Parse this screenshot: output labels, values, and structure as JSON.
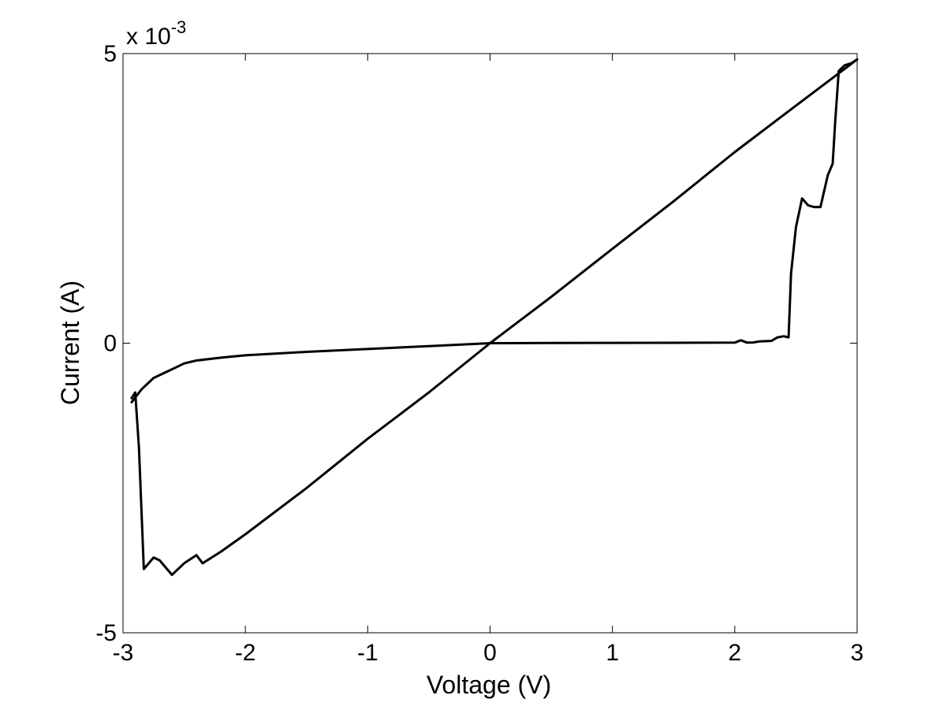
{
  "chart_data": {
    "type": "line",
    "title": "",
    "xlabel": "Voltage (V)",
    "ylabel": "Current (A)",
    "xlim": [
      -3,
      3
    ],
    "ylim": [
      -0.005,
      0.005
    ],
    "x_ticks": [
      -3,
      -2,
      -1,
      0,
      1,
      2,
      3
    ],
    "x_tick_labels": [
      "-3",
      "-2",
      "-1",
      "0",
      "1",
      "2",
      "3"
    ],
    "y_ticks": [
      -0.005,
      0,
      0.005
    ],
    "y_tick_labels": [
      "-5",
      "0",
      "5"
    ],
    "y_exponent_label": {
      "base": "x 10",
      "exponent": "-3"
    },
    "grid": false,
    "legend": "none",
    "line_color": "#000000",
    "series": [
      {
        "x": [
          0,
          0.5,
          1,
          1.5,
          2,
          2.05,
          2.1,
          2.15,
          2.2,
          2.3,
          2.35,
          2.4,
          2.44,
          2.46,
          2.5,
          2.55,
          2.6,
          2.65,
          2.7,
          2.76,
          2.8,
          2.82,
          2.85,
          2.9,
          2.95,
          3
        ],
        "y": [
          0,
          3e-06,
          5e-06,
          7e-06,
          1e-05,
          5e-05,
          1e-05,
          1.2e-05,
          3e-05,
          4e-05,
          0.0001,
          0.00012,
          0.0001,
          0.0012,
          0.002,
          0.0025,
          0.00238,
          0.00235,
          0.00235,
          0.0029,
          0.0031,
          0.0038,
          0.0047,
          0.0048,
          0.00483,
          0.0049
        ]
      },
      {
        "x": [
          3,
          2.5,
          2,
          1.5,
          1,
          0.5,
          0,
          -0.5,
          -1,
          -1.5,
          -2,
          -2.2,
          -2.35,
          -2.4,
          -2.5,
          -2.6,
          -2.7,
          -2.75,
          -2.83,
          -2.87,
          -2.9,
          -2.93
        ],
        "y": [
          0.0049,
          0.0041,
          0.0033,
          0.00245,
          0.00163,
          0.0008,
          0,
          -0.00085,
          -0.00165,
          -0.0025,
          -0.0033,
          -0.0036,
          -0.0038,
          -0.00366,
          -0.0038,
          -0.004,
          -0.00375,
          -0.0037,
          -0.0039,
          -0.0018,
          -0.00085,
          -0.00095
        ]
      },
      {
        "x": [
          -2.93,
          -2.85,
          -2.75,
          -2.6,
          -2.5,
          -2.4,
          -2.2,
          -2,
          -1.5,
          -1,
          -0.5,
          0
        ],
        "y": [
          -0.00102,
          -0.0008,
          -0.0006,
          -0.00045,
          -0.00035,
          -0.0003,
          -0.00025,
          -0.00021,
          -0.00015,
          -0.0001,
          -5e-05,
          0
        ]
      }
    ]
  }
}
